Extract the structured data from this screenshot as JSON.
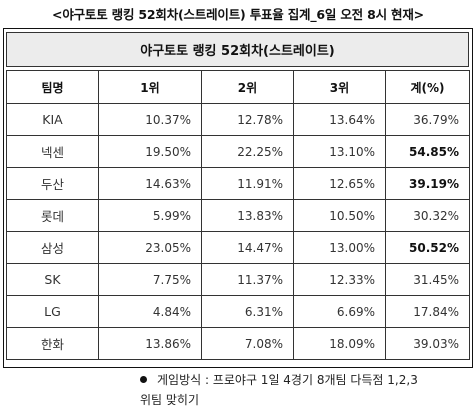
{
  "heading": "<야구토토 랭킹 52회차(스트레이트) 투표율 집계_6일 오전 8시 현재>",
  "table": {
    "title": "야구토토 랭킹 52회차(스트레이트)",
    "headers": [
      "팀명",
      "1위",
      "2위",
      "3위",
      "계(%)"
    ],
    "rows": [
      {
        "team": "KIA",
        "first": "10.37%",
        "second": "12.78%",
        "third": "13.64%",
        "total": "36.79%",
        "total_bold": false
      },
      {
        "team": "넥센",
        "first": "19.50%",
        "second": "22.25%",
        "third": "13.10%",
        "total": "54.85%",
        "total_bold": true
      },
      {
        "team": "두산",
        "first": "14.63%",
        "second": "11.91%",
        "third": "12.65%",
        "total": "39.19%",
        "total_bold": true
      },
      {
        "team": "롯데",
        "first": "5.99%",
        "second": "13.83%",
        "third": "10.50%",
        "total": "30.32%",
        "total_bold": false
      },
      {
        "team": "삼성",
        "first": "23.05%",
        "second": "14.47%",
        "third": "13.00%",
        "total": "50.52%",
        "total_bold": true
      },
      {
        "team": "SK",
        "first": "7.75%",
        "second": "11.37%",
        "third": "12.33%",
        "total": "31.45%",
        "total_bold": false
      },
      {
        "team": "LG",
        "first": "4.84%",
        "second": "6.31%",
        "third": "6.69%",
        "total": "17.84%",
        "total_bold": false
      },
      {
        "team": "한화",
        "first": "13.86%",
        "second": "7.08%",
        "third": "18.09%",
        "total": "39.03%",
        "total_bold": false
      }
    ]
  },
  "footnote": {
    "line1": "게임방식 : 프로야구 1일 4경기 8개팀 다득점 1,2,3",
    "line2": "위팀 맞히기"
  }
}
